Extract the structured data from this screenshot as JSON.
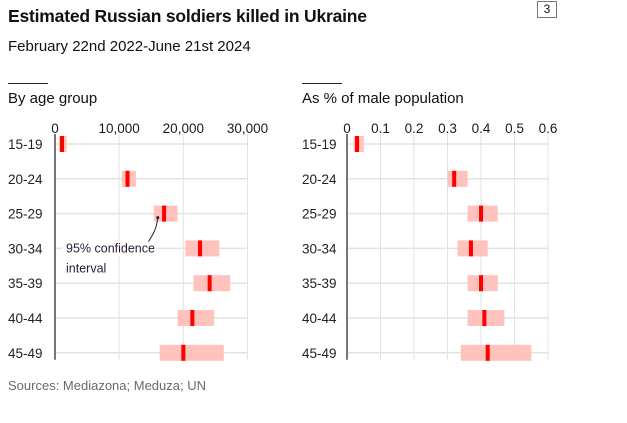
{
  "header": {
    "title": "Estimated Russian soldiers killed in Ukraine",
    "subtitle": "February 22nd 2022-June 21st 2024",
    "badge": "3"
  },
  "footer": {
    "sources": "Sources: Mediazona; Meduza; UN"
  },
  "colors": {
    "point": "#ff0000",
    "interval": "#ffbfb8",
    "grid": "#e3e3e3",
    "axis": "#777777",
    "tick_label": "#1a1a1a"
  },
  "chart_data": [
    {
      "type": "interval",
      "title": "By age group",
      "xlabel": "",
      "ylabel": "",
      "xlim": [
        0,
        30000
      ],
      "xticks": [
        0,
        10000,
        20000,
        30000
      ],
      "xtick_labels": [
        "0",
        "10,000",
        "20,000",
        "30,000"
      ],
      "categories": [
        "15-19",
        "20-24",
        "25-29",
        "30-34",
        "35-39",
        "40-44",
        "45-49"
      ],
      "values": [
        1100,
        11300,
        17000,
        22600,
        24100,
        21400,
        20000
      ],
      "lower": [
        600,
        10400,
        15400,
        20300,
        21600,
        19100,
        16300
      ],
      "upper": [
        1800,
        12600,
        19100,
        25600,
        27300,
        24800,
        26300
      ],
      "grid": true,
      "annotation": {
        "text_line1": "95% confidence",
        "text_line2": "interval",
        "target_category": "25-29"
      }
    },
    {
      "type": "interval",
      "title": "As % of male population",
      "xlabel": "",
      "ylabel": "",
      "xlim": [
        0,
        0.6
      ],
      "xticks": [
        0,
        0.1,
        0.2,
        0.3,
        0.4,
        0.5,
        0.6
      ],
      "xtick_labels": [
        "0",
        "0.1",
        "0.2",
        "0.3",
        "0.4",
        "0.5",
        "0.6"
      ],
      "categories": [
        "15-19",
        "20-24",
        "25-29",
        "30-34",
        "35-39",
        "40-44",
        "45-49"
      ],
      "values": [
        0.03,
        0.32,
        0.4,
        0.37,
        0.4,
        0.41,
        0.42
      ],
      "lower": [
        0.02,
        0.3,
        0.36,
        0.33,
        0.36,
        0.36,
        0.34
      ],
      "upper": [
        0.05,
        0.36,
        0.45,
        0.42,
        0.45,
        0.47,
        0.55
      ],
      "grid": true
    }
  ]
}
